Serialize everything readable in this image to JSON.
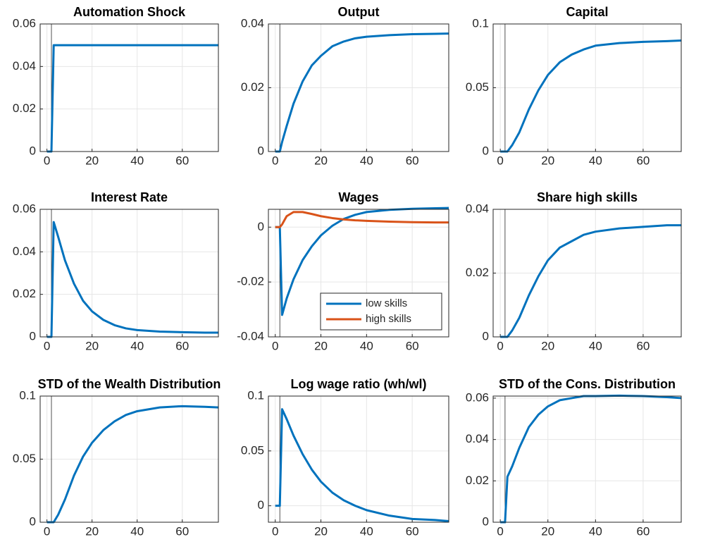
{
  "chart_data": [
    {
      "type": "line",
      "title": "Automation Shock",
      "x": [
        0,
        2,
        3,
        5,
        8,
        12,
        16,
        20,
        25,
        30,
        35,
        40,
        50,
        60,
        70,
        76
      ],
      "values": [
        0,
        0,
        0.05,
        0.05,
        0.05,
        0.05,
        0.05,
        0.05,
        0.05,
        0.05,
        0.05,
        0.05,
        0.05,
        0.05,
        0.05,
        0.05
      ],
      "color": "#0072bd",
      "xlim": [
        -3,
        76
      ],
      "xticks": [
        0,
        20,
        40,
        60
      ],
      "ylim": [
        0,
        0.06
      ],
      "yticks": [
        0,
        0.02,
        0.04,
        0.06
      ],
      "grid": true,
      "vline": 2
    },
    {
      "type": "line",
      "title": "Output",
      "x": [
        0,
        2,
        3,
        5,
        8,
        12,
        16,
        20,
        25,
        30,
        35,
        40,
        50,
        60,
        70,
        76
      ],
      "values": [
        0,
        0,
        0.003,
        0.008,
        0.015,
        0.022,
        0.027,
        0.03,
        0.033,
        0.0345,
        0.0355,
        0.036,
        0.0365,
        0.0368,
        0.0369,
        0.037
      ],
      "color": "#0072bd",
      "xlim": [
        -3,
        76
      ],
      "xticks": [
        0,
        20,
        40,
        60
      ],
      "ylim": [
        0,
        0.04
      ],
      "yticks": [
        0,
        0.02,
        0.04
      ],
      "grid": true,
      "vline": 2
    },
    {
      "type": "line",
      "title": "Capital",
      "x": [
        0,
        2,
        3,
        5,
        8,
        12,
        16,
        20,
        25,
        30,
        35,
        40,
        50,
        60,
        70,
        76
      ],
      "values": [
        0,
        0,
        0,
        0.005,
        0.015,
        0.033,
        0.048,
        0.06,
        0.07,
        0.076,
        0.08,
        0.083,
        0.085,
        0.086,
        0.0865,
        0.087
      ],
      "color": "#0072bd",
      "xlim": [
        -3,
        76
      ],
      "xticks": [
        0,
        20,
        40,
        60
      ],
      "ylim": [
        0,
        0.1
      ],
      "yticks": [
        0,
        0.05,
        0.1
      ],
      "grid": true,
      "vline": 2
    },
    {
      "type": "line",
      "title": "Interest Rate",
      "x": [
        0,
        2,
        3,
        5,
        8,
        12,
        16,
        20,
        25,
        30,
        35,
        40,
        50,
        60,
        70,
        76
      ],
      "values": [
        0,
        0,
        0.054,
        0.047,
        0.036,
        0.025,
        0.017,
        0.012,
        0.008,
        0.0055,
        0.004,
        0.0032,
        0.0025,
        0.0022,
        0.002,
        0.002
      ],
      "color": "#0072bd",
      "xlim": [
        -3,
        76
      ],
      "xticks": [
        0,
        20,
        40,
        60
      ],
      "ylim": [
        0,
        0.06
      ],
      "yticks": [
        0,
        0.02,
        0.04,
        0.06
      ],
      "grid": true,
      "vline": 2
    },
    {
      "type": "line",
      "title": "Wages",
      "x": [
        0,
        2,
        3,
        5,
        8,
        12,
        16,
        20,
        25,
        30,
        35,
        40,
        50,
        60,
        70,
        76
      ],
      "series": [
        {
          "name": "low skills",
          "color": "#0072bd",
          "values": [
            0,
            0,
            -0.032,
            -0.026,
            -0.019,
            -0.012,
            -0.007,
            -0.003,
            0.0005,
            0.003,
            0.0045,
            0.0055,
            0.0063,
            0.0067,
            0.0069,
            0.007
          ]
        },
        {
          "name": "high skills",
          "color": "#d95319",
          "values": [
            0,
            0,
            0.001,
            0.004,
            0.0055,
            0.0055,
            0.0048,
            0.004,
            0.0033,
            0.0028,
            0.0025,
            0.0023,
            0.002,
            0.0018,
            0.0017,
            0.0017
          ]
        }
      ],
      "xlim": [
        -3,
        76
      ],
      "xticks": [
        0,
        20,
        40,
        60
      ],
      "ylim": [
        -0.04,
        0.0065
      ],
      "yticks": [
        {
          "value": -0.04,
          "label": "-0.04"
        },
        {
          "value": -0.02,
          "label": "-0.02"
        },
        0
      ],
      "grid": true,
      "vline": 2,
      "legend": "lower right"
    },
    {
      "type": "line",
      "title": "Share high skills",
      "x": [
        0,
        2,
        3,
        5,
        8,
        12,
        16,
        20,
        25,
        30,
        35,
        40,
        50,
        60,
        70,
        76
      ],
      "values": [
        0,
        0,
        0,
        0.002,
        0.006,
        0.013,
        0.019,
        0.024,
        0.028,
        0.03,
        0.032,
        0.033,
        0.034,
        0.0345,
        0.035,
        0.035
      ],
      "color": "#0072bd",
      "xlim": [
        -3,
        76
      ],
      "xticks": [
        0,
        20,
        40,
        60
      ],
      "ylim": [
        0,
        0.04
      ],
      "yticks": [
        0,
        0.02,
        0.04
      ],
      "grid": true,
      "vline": 2
    },
    {
      "type": "line",
      "title": "STD of the Wealth Distribution",
      "x": [
        0,
        2,
        3,
        5,
        8,
        12,
        16,
        20,
        25,
        30,
        35,
        40,
        50,
        60,
        70,
        76
      ],
      "values": [
        0,
        0,
        0,
        0.006,
        0.018,
        0.037,
        0.052,
        0.063,
        0.073,
        0.08,
        0.085,
        0.088,
        0.091,
        0.092,
        0.0915,
        0.091
      ],
      "color": "#0072bd",
      "xlim": [
        -3,
        76
      ],
      "xticks": [
        0,
        20,
        40,
        60
      ],
      "ylim": [
        0,
        0.1
      ],
      "yticks": [
        0,
        0.05,
        0.1
      ],
      "grid": true,
      "vline": 2
    },
    {
      "type": "line",
      "title": "Log wage ratio (wh/wl)",
      "x": [
        0,
        2,
        3,
        5,
        8,
        12,
        16,
        20,
        25,
        30,
        35,
        40,
        50,
        60,
        70,
        76
      ],
      "values": [
        0,
        0,
        0.088,
        0.079,
        0.064,
        0.047,
        0.033,
        0.022,
        0.012,
        0.005,
        0,
        -0.004,
        -0.009,
        -0.012,
        -0.013,
        -0.014
      ],
      "color": "#0072bd",
      "xlim": [
        -3,
        76
      ],
      "xticks": [
        0,
        20,
        40,
        60
      ],
      "ylim": [
        -0.015,
        0.1
      ],
      "yticks": [
        0,
        0.05,
        0.1
      ],
      "grid": true,
      "vline": 2
    },
    {
      "type": "line",
      "title": "STD of the Cons. Distribution",
      "x": [
        0,
        2,
        3,
        5,
        8,
        12,
        16,
        20,
        25,
        30,
        35,
        40,
        50,
        60,
        70,
        76
      ],
      "values": [
        0,
        0,
        0.022,
        0.027,
        0.036,
        0.046,
        0.052,
        0.056,
        0.059,
        0.06,
        0.061,
        0.061,
        0.0612,
        0.061,
        0.0605,
        0.06
      ],
      "color": "#0072bd",
      "xlim": [
        -3,
        76
      ],
      "xticks": [
        0,
        20,
        40,
        60
      ],
      "ylim": [
        0,
        0.061
      ],
      "yticks": [
        0,
        0.02,
        0.04,
        0.06
      ],
      "grid": true,
      "vline": 2
    }
  ]
}
